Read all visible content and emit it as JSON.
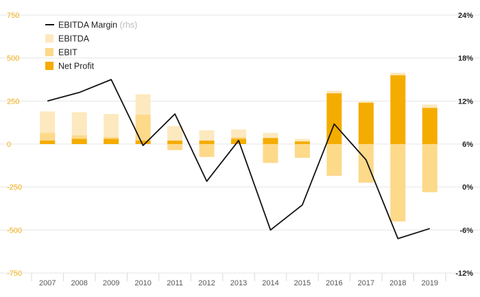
{
  "chart_data": {
    "type": "bar",
    "categories": [
      "2007",
      "2008",
      "2009",
      "2010",
      "2011",
      "2012",
      "2013",
      "2014",
      "2015",
      "2016",
      "2017",
      "2018",
      "2019"
    ],
    "series": [
      {
        "name": "EBITDA",
        "kind": "bar",
        "axis": "left",
        "color": "#fde9bf",
        "values": [
          190,
          185,
          175,
          290,
          105,
          80,
          85,
          65,
          30,
          310,
          250,
          415,
          230
        ]
      },
      {
        "name": "EBIT",
        "kind": "bar",
        "axis": "left",
        "color": "#fdd98a",
        "values": [
          65,
          50,
          40,
          170,
          -35,
          -75,
          40,
          -110,
          -80,
          -185,
          -225,
          -450,
          -280
        ]
      },
      {
        "name": "Net Profit",
        "kind": "bar",
        "axis": "left",
        "color": "#f5ac00",
        "values": [
          20,
          30,
          30,
          20,
          20,
          20,
          30,
          35,
          15,
          295,
          240,
          400,
          210
        ]
      },
      {
        "name": "EBITDA Margin",
        "name_suffix": "(rhs)",
        "kind": "line",
        "axis": "right",
        "color": "#111111",
        "values": [
          12.0,
          13.2,
          15.0,
          5.8,
          10.2,
          0.8,
          6.5,
          -6.0,
          -2.5,
          8.8,
          3.8,
          -7.2,
          -5.8
        ]
      }
    ],
    "y_left": {
      "ticks": [
        "750",
        "500",
        "250",
        "0",
        "-250",
        "-500",
        "-750"
      ],
      "ylim": [
        -750,
        750
      ],
      "color": "#f3ac10"
    },
    "y_right": {
      "ticks": [
        "24%",
        "18%",
        "12%",
        "6%",
        "0%",
        "-6%",
        "-12%"
      ],
      "ylim": [
        -12,
        24
      ]
    },
    "grid": true,
    "legend_position": "top-left",
    "title": "",
    "xlabel": "",
    "ylabel": ""
  }
}
